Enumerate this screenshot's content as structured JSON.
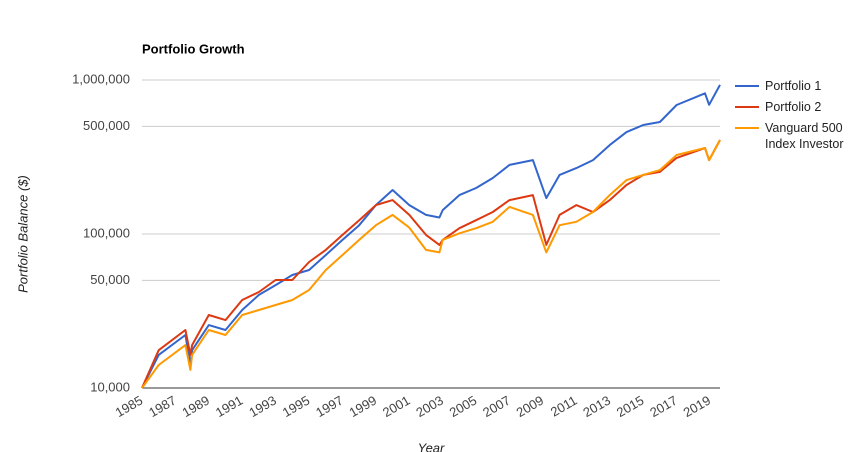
{
  "chart_data": {
    "type": "line",
    "title": "Portfolio Growth",
    "y_label": "Portfolio Balance ($)",
    "x_label": "Year",
    "yscale": "log",
    "grid": true,
    "legend": "right",
    "xlim": [
      1985,
      2019.6
    ],
    "xticks": [
      1985,
      1987,
      1989,
      1991,
      1993,
      1995,
      1997,
      1999,
      2001,
      2003,
      2005,
      2007,
      2009,
      2011,
      2013,
      2015,
      2017,
      2019
    ],
    "ylim": [
      10000,
      1000000
    ],
    "yticks": [
      {
        "value": 10000,
        "label": "10,000"
      },
      {
        "value": 50000,
        "label": "50,000"
      },
      {
        "value": 100000,
        "label": "100,000"
      },
      {
        "value": 500000,
        "label": "500,000"
      },
      {
        "value": 1000000,
        "label": "1,000,000"
      }
    ],
    "x": [
      1985,
      1986,
      1987.6,
      1987.9,
      1988,
      1989,
      1990,
      1991,
      1992,
      1993,
      1994,
      1995,
      1996,
      1997,
      1998,
      1999,
      2000,
      2001,
      2002,
      2002.8,
      2003,
      2004,
      2005,
      2006,
      2007,
      2008.4,
      2009.2,
      2010,
      2011,
      2012,
      2013,
      2014,
      2015,
      2016,
      2017,
      2018.7,
      2018.95,
      2019.6
    ],
    "series": [
      {
        "name": "Portfolio 1",
        "color": "#3366cc",
        "values": [
          10000,
          16400,
          22100,
          14100,
          17600,
          25600,
          23800,
          32100,
          40200,
          46600,
          54200,
          58400,
          73100,
          91500,
          114000,
          154000,
          193000,
          154000,
          133000,
          128000,
          143000,
          179000,
          199000,
          231000,
          281000,
          302000,
          171000,
          242000,
          268000,
          302000,
          378000,
          459000,
          510000,
          534000,
          688000,
          820000,
          690000,
          929000
        ]
      },
      {
        "name": "Portfolio 2",
        "color": "#dc3912",
        "values": [
          10000,
          17600,
          23800,
          16400,
          19000,
          29800,
          27600,
          37300,
          42000,
          50300,
          50300,
          65800,
          78800,
          98600,
          123000,
          154000,
          166000,
          133000,
          98600,
          84900,
          91500,
          109000,
          123000,
          139000,
          166000,
          179000,
          84900,
          133000,
          154000,
          139000,
          166000,
          208000,
          242000,
          253000,
          312000,
          362000,
          302000,
          408000
        ]
      },
      {
        "name": "Vanguard 500 Index Investor",
        "color": "#ff9900",
        "values": [
          10000,
          14100,
          19000,
          13100,
          16400,
          23800,
          22100,
          29800,
          32100,
          34600,
          37300,
          43300,
          58400,
          73100,
          91500,
          114000,
          133000,
          110000,
          78800,
          76000,
          91500,
          101000,
          109000,
          120000,
          150000,
          133000,
          76000,
          114000,
          120000,
          139000,
          179000,
          224000,
          242000,
          260000,
          326000,
          362000,
          302000,
          408000
        ]
      }
    ]
  }
}
